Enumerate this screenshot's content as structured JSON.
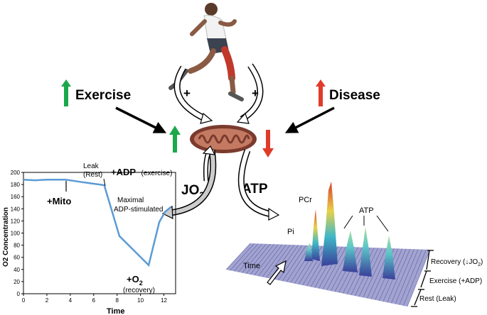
{
  "labels": {
    "exercise": "Exercise",
    "disease": "Disease",
    "plus_left": "+",
    "plus_right": "+",
    "jo2": "JO",
    "jo2_sub": "2",
    "atp": "ATP"
  },
  "o2_chart": {
    "ylabel": "O2 Concentration",
    "xlabel": "Time",
    "y_ticks": [
      "0",
      "20",
      "40",
      "60",
      "80",
      "100",
      "120",
      "140",
      "160",
      "180",
      "200"
    ],
    "x_ticks": [
      "0",
      "2",
      "4",
      "6",
      "8",
      "10",
      "12"
    ],
    "annotations": {
      "mito": "+Mito",
      "leak": "Leak",
      "rest": "(Rest)",
      "adp": "+ADP",
      "adp_note": "(exercise)",
      "maximal": "Maximal",
      "adp_stimulated": "ADP-stimulated",
      "o2": "+O",
      "o2_sub": "2",
      "recovery": "(recovery)"
    }
  },
  "chart_data": {
    "type": "line",
    "xlabel": "Time",
    "ylabel": "O2 Concentration",
    "xlim": [
      0,
      13
    ],
    "ylim": [
      0,
      200
    ],
    "series": [
      {
        "x": [
          0,
          1,
          2,
          3.6,
          5,
          6.9,
          8.2,
          9.5,
          10.7,
          11.6,
          12.1,
          12.6
        ],
        "y": [
          188,
          187,
          188,
          188,
          184,
          179,
          95,
          70,
          47,
          118,
          135,
          143
        ]
      }
    ]
  },
  "spectrum": {
    "peak_pi": "Pi",
    "peak_pcr": "PCr",
    "peak_atp": "ATP",
    "time": "Time",
    "recovery": "Recovery (",
    "recovery_jo": "JO",
    "recovery_sub": "2",
    "recovery_close": ")",
    "exercise": "Exercise (+ADP)",
    "rest": "Rest (Leak)"
  },
  "colors": {
    "up_arrow": "#1aa84b",
    "down_arrow": "#e03a2a",
    "trace": "#5b9bd5",
    "mito_outer": "#7a3b2e",
    "spectrum_base": "#3a3f9a"
  },
  "icons": {
    "runner": "runner-figure",
    "mitochondrion": "mitochondrion-icon"
  }
}
